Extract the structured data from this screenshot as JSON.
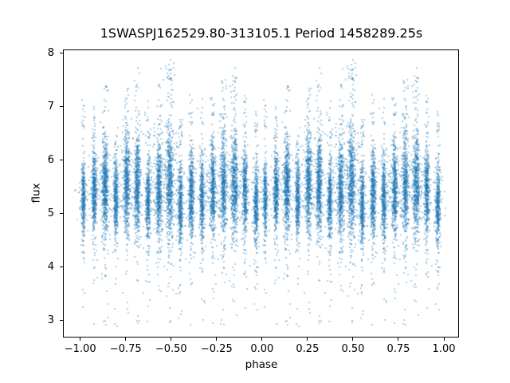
{
  "chart_data": {
    "type": "scatter",
    "title": "1SWASPJ162529.80-313105.1 Period 1458289.25s",
    "xlabel": "phase",
    "ylabel": "flux",
    "xlim": [
      -1.095,
      1.084
    ],
    "ylim": [
      2.679,
      8.067
    ],
    "xticks": [
      -1.0,
      -0.75,
      -0.5,
      -0.25,
      0.0,
      0.25,
      0.5,
      0.75,
      1.0
    ],
    "xtick_labels": [
      "−1.00",
      "−0.75",
      "−0.50",
      "−0.25",
      "0.00",
      "0.25",
      "0.50",
      "0.75",
      "1.00"
    ],
    "yticks": [
      3,
      4,
      5,
      6,
      7,
      8
    ],
    "ytick_labels": [
      "3",
      "4",
      "5",
      "6",
      "7",
      "8"
    ],
    "grid": false,
    "legend": false,
    "marker_color": "#1f77b4",
    "marker_alpha": 0.62,
    "marker_size_px": 1.5,
    "points_total_approx": 19000,
    "flux_point_range": [
      2.88,
      7.95
    ],
    "phase_duplication": "every point is plotted twice, at phase and at phase-1 (x spans -1 to 1, two cycles shown)",
    "structure_note": "phase-folded light curve; points clump in ~17 vertical night-stripes per cycle spaced ~0.0593 in phase, dense band flux 4.8-6.2, sparse lower tails to ~2.9 and upper spikes to ~7.9",
    "stripes": [
      {
        "phase": 0.018,
        "weight": 0.75,
        "flux_mu": 5.3,
        "flux_sigma": 0.3,
        "flux_top": 7.2,
        "tail_scale": 0.45,
        "x_sigma": 0.005
      },
      {
        "phase": 0.077,
        "weight": 0.95,
        "flux_mu": 5.45,
        "flux_sigma": 0.34,
        "flux_top": 7.0,
        "tail_scale": 0.5,
        "x_sigma": 0.006
      },
      {
        "phase": 0.137,
        "weight": 1.25,
        "flux_mu": 5.5,
        "flux_sigma": 0.4,
        "flux_top": 7.4,
        "tail_scale": 0.6,
        "x_sigma": 0.009
      },
      {
        "phase": 0.196,
        "weight": 0.85,
        "flux_mu": 5.3,
        "flux_sigma": 0.32,
        "flux_top": 6.8,
        "tail_scale": 0.5,
        "x_sigma": 0.006
      },
      {
        "phase": 0.255,
        "weight": 1.15,
        "flux_mu": 5.55,
        "flux_sigma": 0.42,
        "flux_top": 7.4,
        "tail_scale": 0.55,
        "x_sigma": 0.008
      },
      {
        "phase": 0.314,
        "weight": 1.15,
        "flux_mu": 5.55,
        "flux_sigma": 0.42,
        "flux_top": 7.8,
        "tail_scale": 0.6,
        "x_sigma": 0.008
      },
      {
        "phase": 0.374,
        "weight": 0.9,
        "flux_mu": 5.3,
        "flux_sigma": 0.33,
        "flux_top": 7.2,
        "tail_scale": 0.5,
        "x_sigma": 0.006
      },
      {
        "phase": 0.433,
        "weight": 1.15,
        "flux_mu": 5.45,
        "flux_sigma": 0.4,
        "flux_top": 7.6,
        "tail_scale": 0.55,
        "x_sigma": 0.008
      },
      {
        "phase": 0.492,
        "weight": 1.35,
        "flux_mu": 5.6,
        "flux_sigma": 0.48,
        "flux_top": 7.9,
        "tail_scale": 0.65,
        "x_sigma": 0.01
      },
      {
        "phase": 0.551,
        "weight": 0.9,
        "flux_mu": 5.15,
        "flux_sigma": 0.34,
        "flux_top": 6.8,
        "tail_scale": 0.65,
        "x_sigma": 0.006
      },
      {
        "phase": 0.611,
        "weight": 1.0,
        "flux_mu": 5.35,
        "flux_sigma": 0.36,
        "flux_top": 7.3,
        "tail_scale": 0.5,
        "x_sigma": 0.007
      },
      {
        "phase": 0.67,
        "weight": 0.9,
        "flux_mu": 5.3,
        "flux_sigma": 0.34,
        "flux_top": 7.2,
        "tail_scale": 0.5,
        "x_sigma": 0.006
      },
      {
        "phase": 0.729,
        "weight": 1.05,
        "flux_mu": 5.45,
        "flux_sigma": 0.38,
        "flux_top": 7.2,
        "tail_scale": 0.6,
        "x_sigma": 0.007
      },
      {
        "phase": 0.789,
        "weight": 1.1,
        "flux_mu": 5.5,
        "flux_sigma": 0.42,
        "flux_top": 7.5,
        "tail_scale": 0.55,
        "x_sigma": 0.008
      },
      {
        "phase": 0.848,
        "weight": 1.2,
        "flux_mu": 5.55,
        "flux_sigma": 0.44,
        "flux_top": 7.8,
        "tail_scale": 0.6,
        "x_sigma": 0.009
      },
      {
        "phase": 0.907,
        "weight": 0.95,
        "flux_mu": 5.4,
        "flux_sigma": 0.36,
        "flux_top": 7.3,
        "tail_scale": 0.5,
        "x_sigma": 0.006
      },
      {
        "phase": 0.967,
        "weight": 0.85,
        "flux_mu": 5.2,
        "flux_sigma": 0.34,
        "flux_top": 7.0,
        "tail_scale": 0.55,
        "x_sigma": 0.006
      }
    ],
    "render": {
      "seed": 421,
      "points_per_unit_weight": 540,
      "core_fraction": 0.82,
      "upper_fraction": 0.08,
      "lower_tail_fraction": 0.1,
      "wide_x_fraction": 0.1,
      "wide_x_factor": 3.5
    }
  }
}
